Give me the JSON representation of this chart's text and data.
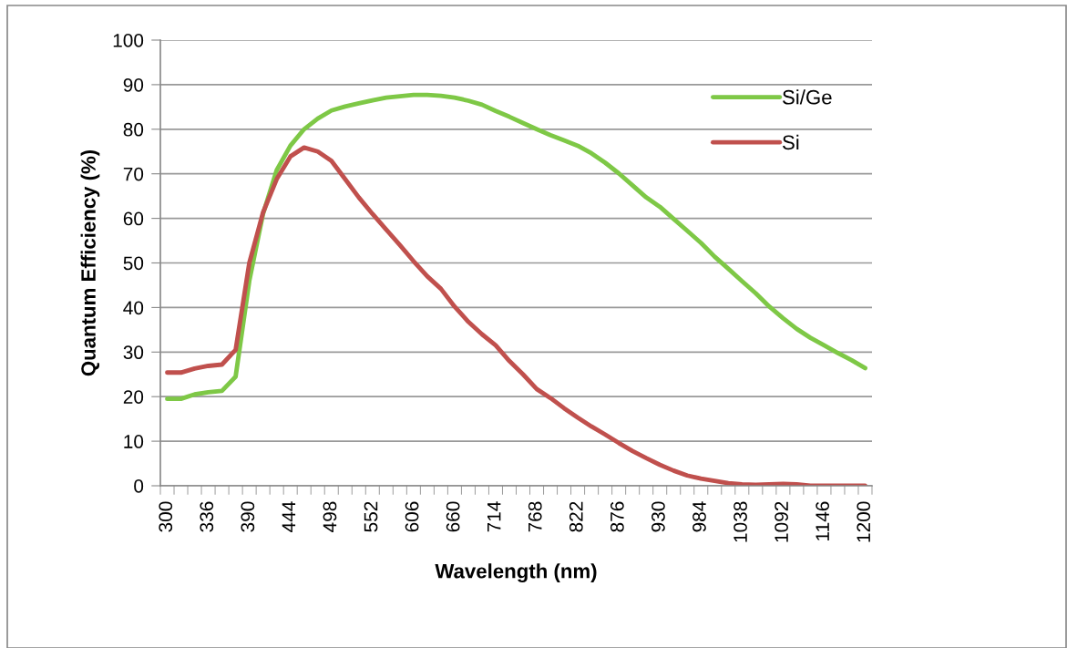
{
  "chart_data": {
    "type": "line",
    "xlabel": "Wavelength (nm)",
    "ylabel": "Quantum Efficiency (%)",
    "categories": [
      "300",
      null,
      null,
      "336",
      null,
      null,
      "390",
      null,
      null,
      "444",
      null,
      null,
      "498",
      null,
      null,
      "552",
      null,
      null,
      "606",
      null,
      null,
      "660",
      null,
      null,
      "714",
      null,
      null,
      "768",
      null,
      null,
      "822",
      null,
      null,
      "876",
      null,
      null,
      "930",
      null,
      null,
      "984",
      null,
      null,
      "1038",
      null,
      null,
      "1092",
      null,
      null,
      "1146",
      null,
      null,
      "1200"
    ],
    "series": [
      {
        "name": "Si/Ge",
        "color": "#7ec846",
        "values": [
          19.5,
          19.5,
          20.5,
          21,
          21.3,
          24.5,
          46,
          61,
          70.8,
          76.3,
          80,
          82.4,
          84.2,
          85.1,
          85.8,
          86.5,
          87.1,
          87.4,
          87.7,
          87.7,
          87.5,
          87.1,
          86.4,
          85.5,
          84.1,
          82.8,
          81.4,
          80,
          78.7,
          77.5,
          76.3,
          74.6,
          72.5,
          70.1,
          67.4,
          64.7,
          62.6,
          59.9,
          57.2,
          54.5,
          51.4,
          48.7,
          45.9,
          43.2,
          40.2,
          37.6,
          35.2,
          33.2,
          31.5,
          29.8,
          28.2,
          26.4
        ]
      },
      {
        "name": "Si",
        "color": "#c0504d",
        "values": [
          25.4,
          25.4,
          26.3,
          26.9,
          27.2,
          30.5,
          50,
          61.3,
          68.8,
          73.9,
          75.9,
          75,
          72.9,
          68.8,
          64.7,
          61,
          57.5,
          54,
          50.4,
          47,
          44.2,
          40.2,
          36.8,
          34,
          31.5,
          28,
          25,
          21.7,
          19.7,
          17.4,
          15.3,
          13.3,
          11.5,
          9.6,
          7.8,
          6.2,
          4.7,
          3.4,
          2.3,
          1.6,
          1.1,
          0.6,
          0.3,
          0.2,
          0.3,
          0.4,
          0.3,
          0,
          0,
          0,
          0,
          0
        ]
      }
    ],
    "ylim": [
      0,
      100
    ],
    "yticks": [
      0,
      10,
      20,
      30,
      40,
      50,
      60,
      70,
      80,
      90,
      100
    ],
    "grid": "y",
    "legend": "top right",
    "marker": "none",
    "line_style": "solid"
  }
}
